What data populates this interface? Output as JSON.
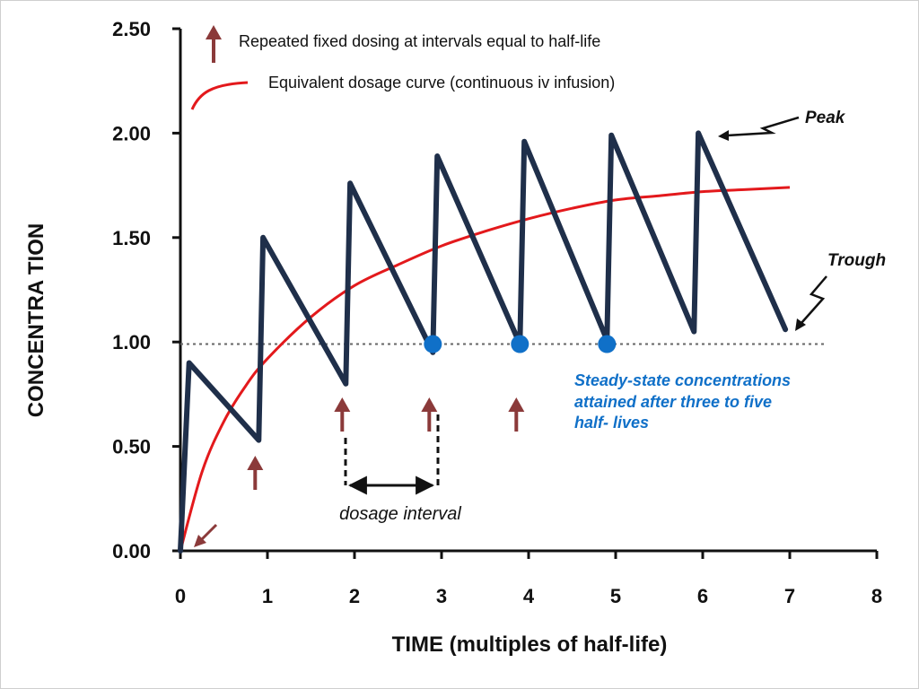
{
  "chart_data": {
    "type": "line",
    "xlabel": "TIME (multiples of half-life)",
    "ylabel": "CONCENTRA TION",
    "xlim": [
      0,
      8
    ],
    "ylim": [
      0,
      2.5
    ],
    "x_ticks": [
      0,
      1,
      2,
      3,
      4,
      5,
      6,
      7,
      8
    ],
    "x_tick_labels": [
      "0",
      "1",
      "2",
      "3",
      "4",
      "5",
      "6",
      "7",
      "8"
    ],
    "y_ticks": [
      0,
      0.5,
      1.0,
      1.5,
      2.0,
      2.5
    ],
    "y_tick_labels": [
      "0.00",
      "0.50",
      "1.00",
      "1.50",
      "2.00",
      "2.50"
    ],
    "reference_line_y": 0.99,
    "series": [
      {
        "name": "Repeated fixed dosing at intervals equal to half-life",
        "color": "#1f2f4a",
        "points": [
          [
            0,
            0
          ],
          [
            0.1,
            0.9
          ],
          [
            0.9,
            0.53
          ],
          [
            0.95,
            1.5
          ],
          [
            1.9,
            0.8
          ],
          [
            1.95,
            1.76
          ],
          [
            2.9,
            0.95
          ],
          [
            2.95,
            1.89
          ],
          [
            3.9,
            0.99
          ],
          [
            3.95,
            1.96
          ],
          [
            4.9,
            1.01
          ],
          [
            4.95,
            1.99
          ],
          [
            5.9,
            1.05
          ],
          [
            5.95,
            2.0
          ],
          [
            6.95,
            1.06
          ]
        ]
      },
      {
        "name": "Equivalent dosage curve (continuous iv infusion)",
        "color": "#e3191c",
        "points": [
          [
            0,
            0
          ],
          [
            0.25,
            0.38
          ],
          [
            0.5,
            0.62
          ],
          [
            0.75,
            0.79
          ],
          [
            1,
            0.92
          ],
          [
            1.5,
            1.12
          ],
          [
            2,
            1.27
          ],
          [
            2.5,
            1.37
          ],
          [
            3,
            1.46
          ],
          [
            3.5,
            1.53
          ],
          [
            4,
            1.59
          ],
          [
            4.5,
            1.64
          ],
          [
            5,
            1.68
          ],
          [
            5.5,
            1.7
          ],
          [
            6,
            1.72
          ],
          [
            6.5,
            1.73
          ],
          [
            7,
            1.74
          ]
        ]
      }
    ],
    "steady_state_points": [
      [
        2.9,
        0.99
      ],
      [
        3.9,
        0.99
      ],
      [
        4.9,
        0.99
      ]
    ],
    "dose_arrows_x": [
      0.9,
      1.9,
      2.9,
      3.9
    ],
    "legend": {
      "arrow_text": "Repeated fixed dosing at intervals equal to half-life",
      "curve_text": "Equivalent dosage curve (continuous iv infusion)"
    },
    "annotations": {
      "peak": "Peak",
      "trough": "Trough",
      "dosage_interval": "dosage interval",
      "steady_state": [
        "Steady-state concentrations",
        "attained after three to five",
        "half- lives"
      ]
    },
    "colors": {
      "dose_arrow": "#8b3a3a",
      "steady_state": "#1070c8",
      "axis": "#111111",
      "reference_line": "#666666"
    }
  }
}
